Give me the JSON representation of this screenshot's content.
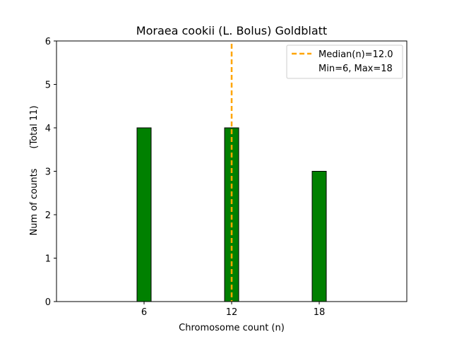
{
  "chart_data": {
    "type": "bar",
    "title": "Moraea cookii (L. Bolus) Goldblatt",
    "xlabel": "Chromosome count (n)",
    "ylabel": "Num of counts",
    "ylabel_total": "(Total 11)",
    "x": [
      6,
      12,
      18
    ],
    "values": [
      4,
      4,
      3
    ],
    "bar_color": "#008000",
    "bar_edge_color": "#000000",
    "xlim": [
      0,
      24
    ],
    "ylim": [
      0,
      6
    ],
    "xticks": [
      6,
      12,
      18
    ],
    "yticks": [
      0,
      1,
      2,
      3,
      4,
      5,
      6
    ],
    "grid": false,
    "median": {
      "value": 12.0,
      "color": "#FFA500",
      "label": "Median(n)=12.0"
    },
    "legend": {
      "placement": "top-right",
      "entries": [
        "Median(n)=12.0",
        "Min=6, Max=18"
      ]
    }
  }
}
